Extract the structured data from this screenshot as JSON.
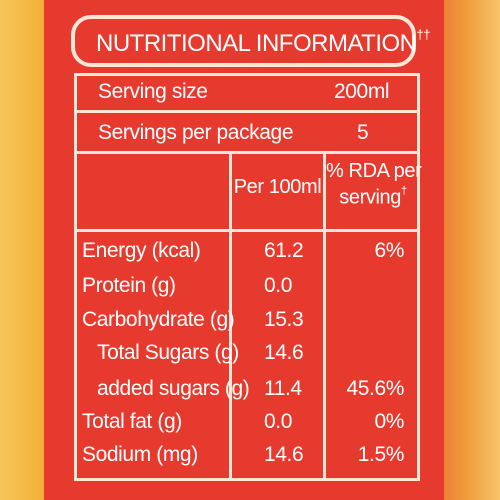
{
  "title": {
    "text": "NUTRITIONAL INFORMATION",
    "mark": "††"
  },
  "serving": {
    "size_label": "Serving size",
    "size_value": "200ml",
    "per_package_label": "Servings per package",
    "per_package_value": "5"
  },
  "header": {
    "per100": "Per 100ml",
    "rda_line1": "% RDA per",
    "rda_line2": "serving",
    "rda_mark": "†"
  },
  "rows": [
    {
      "label": "Energy (kcal)",
      "per100": "61.2",
      "rda": "6%"
    },
    {
      "label": "Protein (g)",
      "per100": "0.0",
      "rda": ""
    },
    {
      "label": "Carbohydrate (g)",
      "per100": "15.3",
      "rda": ""
    },
    {
      "label": "Total Sugars (g)",
      "per100": "14.6",
      "rda": ""
    },
    {
      "label": "added sugars (g)",
      "per100": "11.4",
      "rda": "45.6%"
    },
    {
      "label": "Total fat (g)",
      "per100": "0.0",
      "rda": "0%"
    },
    {
      "label": "Sodium (mg)",
      "per100": "14.6",
      "rda": "1.5%"
    }
  ],
  "colors": {
    "panel": "#e63a2e",
    "line": "#fbe7d8",
    "text": "#ffffff"
  }
}
